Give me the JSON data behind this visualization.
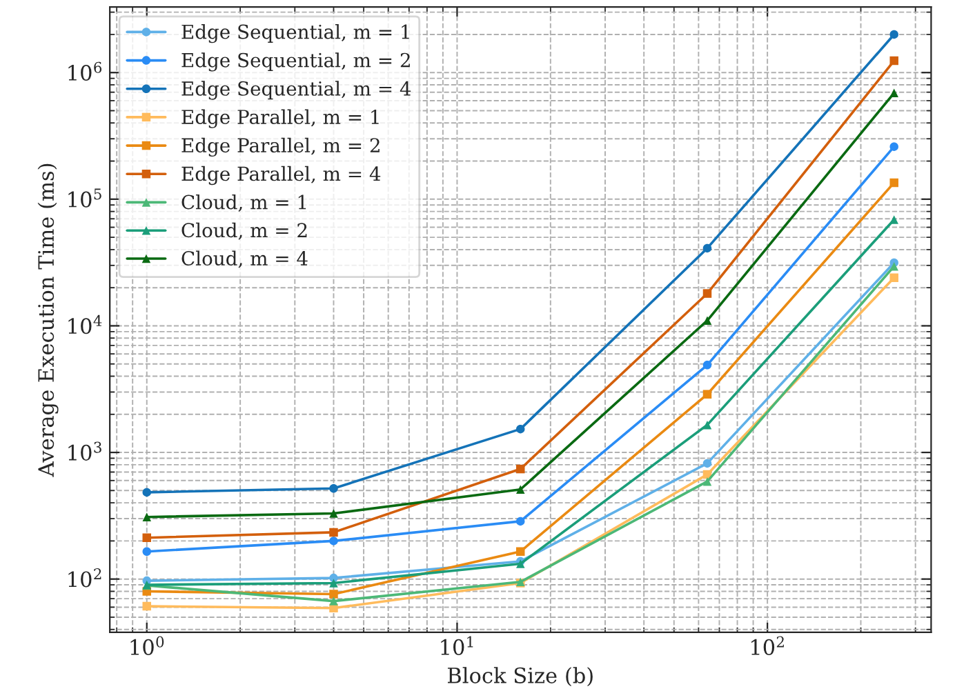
{
  "chart_data": {
    "type": "line",
    "xlabel": "Block Size (b)",
    "ylabel": "Average Execution Time (ms)",
    "x": [
      1,
      4,
      16,
      64,
      256
    ],
    "log": "xy",
    "grid": true,
    "legend": "top left",
    "xlim": [
      0.76,
      337
    ],
    "ylim": [
      38,
      3300000
    ],
    "xticks": [
      {
        "value": 1,
        "label": "10$^{0}$"
      },
      {
        "value": 10,
        "label": "10$^{1}$"
      },
      {
        "value": 100,
        "label": "10$^{2}$"
      }
    ],
    "yticks": [
      {
        "value": 100,
        "label": "10$^{2}$"
      },
      {
        "value": 1000,
        "label": "10$^{3}$"
      },
      {
        "value": 10000,
        "label": "10$^{4}$"
      },
      {
        "value": 100000,
        "label": "10$^{5}$"
      },
      {
        "value": 1000000,
        "label": "10$^{6}$"
      }
    ],
    "series": [
      {
        "name": "Edge Sequential, m = 1",
        "color": "#5fb0e8",
        "marker": "circle",
        "values": [
          97,
          102,
          138,
          820,
          31500
        ]
      },
      {
        "name": "Edge Sequential, m = 2",
        "color": "#2a8cf5",
        "marker": "circle",
        "values": [
          165,
          200,
          286,
          4900,
          260000
        ]
      },
      {
        "name": "Edge Sequential, m = 4",
        "color": "#1473b8",
        "marker": "circle",
        "values": [
          484,
          520,
          1530,
          41000,
          2000000
        ]
      },
      {
        "name": "Edge Parallel, m = 1",
        "color": "#ffbb5c",
        "marker": "square",
        "values": [
          61,
          59,
          93,
          670,
          24000
        ]
      },
      {
        "name": "Edge Parallel, m = 2",
        "color": "#ea8a12",
        "marker": "square",
        "values": [
          80,
          76,
          165,
          2880,
          135000
        ]
      },
      {
        "name": "Edge Parallel, m = 4",
        "color": "#d35f0c",
        "marker": "square",
        "values": [
          212,
          234,
          740,
          18000,
          1240000
        ]
      },
      {
        "name": "Cloud, m = 1",
        "color": "#4cb877",
        "marker": "triangle",
        "values": [
          89,
          67,
          95,
          590,
          29500
        ]
      },
      {
        "name": "Cloud, m = 2",
        "color": "#1b9e7a",
        "marker": "triangle",
        "values": [
          90,
          93,
          132,
          1650,
          69000
        ]
      },
      {
        "name": "Cloud, m = 4",
        "color": "#0a6a12",
        "marker": "triangle",
        "values": [
          309,
          330,
          510,
          11000,
          690000
        ]
      }
    ]
  }
}
